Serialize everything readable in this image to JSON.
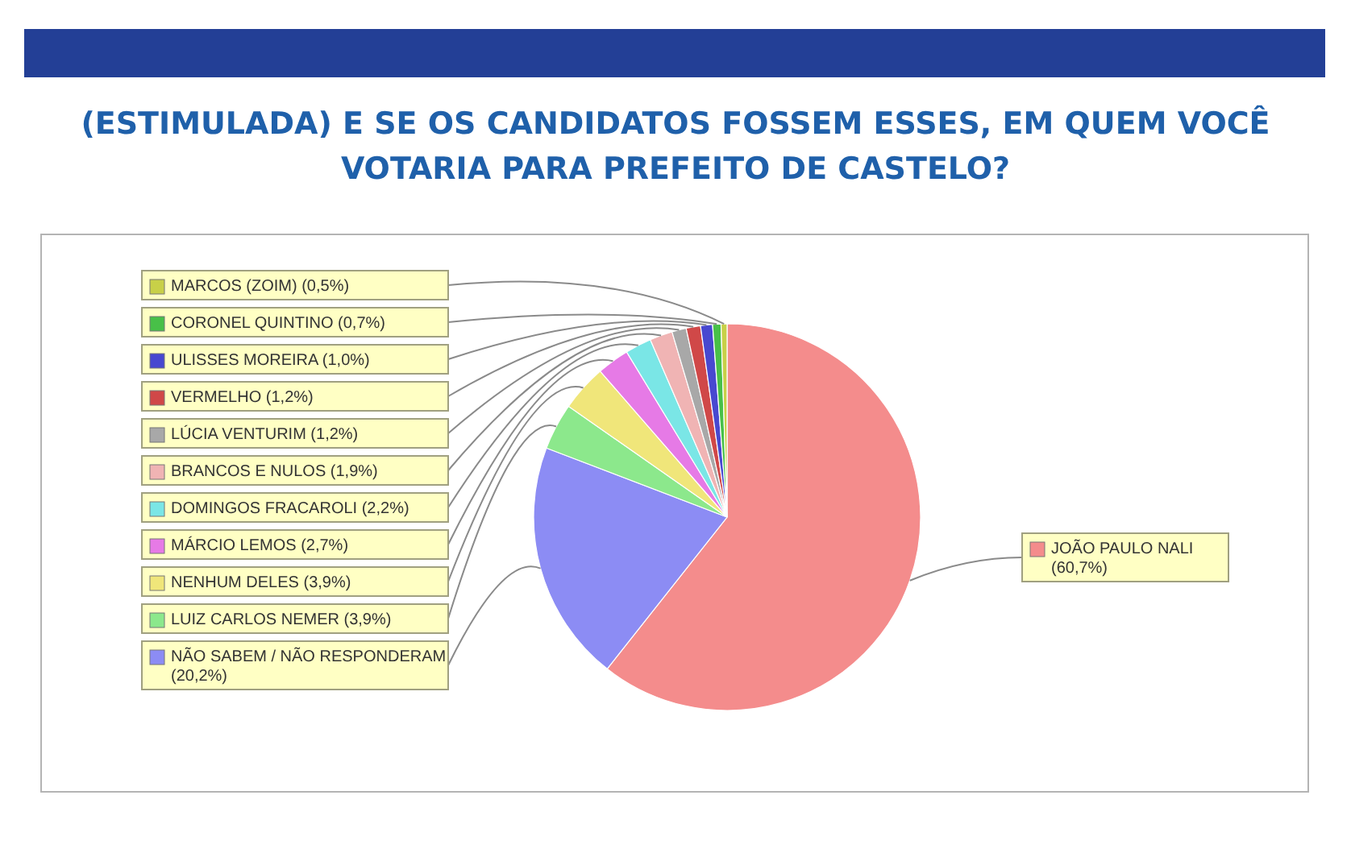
{
  "chart_data": {
    "type": "pie",
    "title": "(ESTIMULADA) E SE OS CANDIDATOS FOSSEM ESSES, EM QUEM VOCÊ VOTARIA PARA PREFEITO DE CASTELO?",
    "categories": [
      "JOÃO PAULO NALI",
      "NÃO SABEM / NÃO RESPONDERAM",
      "LUIZ CARLOS NEMER",
      "NENHUM DELES",
      "MÁRCIO LEMOS",
      "DOMINGOS FRACAROLI",
      "BRANCOS E NULOS",
      "LÚCIA VENTURIM",
      "VERMELHO",
      "ULISSES MOREIRA",
      "CORONEL QUINTINO",
      "MARCOS (ZOIM)"
    ],
    "values": [
      60.7,
      20.2,
      3.9,
      3.9,
      2.7,
      2.2,
      1.9,
      1.2,
      1.2,
      1.0,
      0.7,
      0.5
    ],
    "value_labels": [
      "(60,7%)",
      "(20,2%)",
      "(3,9%)",
      "(3,9%)",
      "(2,7%)",
      "(2,2%)",
      "(1,9%)",
      "(1,2%)",
      "(1,2%)",
      "(1,0%)",
      "(0,7%)",
      "(0,5%)"
    ],
    "colors": [
      "#f48c8c",
      "#8c8cf4",
      "#8ce88c",
      "#f0e67a",
      "#e67ae6",
      "#7ae6e6",
      "#f0b4b4",
      "#a8a8a8",
      "#d04848",
      "#4848d0",
      "#48c048",
      "#c8d048"
    ],
    "legend": "left"
  }
}
